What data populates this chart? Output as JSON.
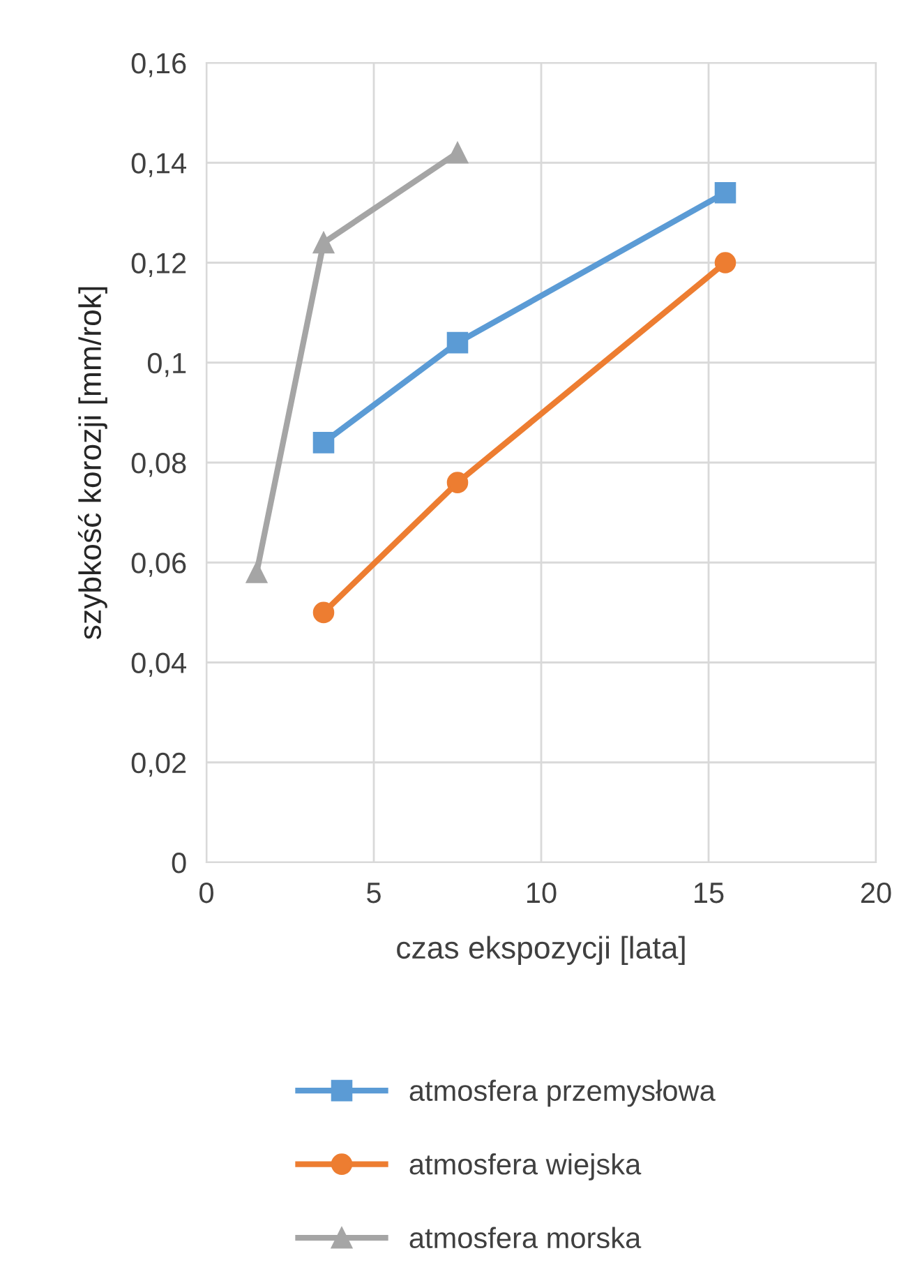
{
  "chart_data": {
    "type": "line",
    "xlabel": "czas ekspozycji [lata]",
    "ylabel": "szybkość korozji [mm/rok]",
    "series": [
      {
        "name": "atmosfera przemysłowa",
        "color": "#5b9bd5",
        "marker": "square",
        "x": [
          3.5,
          7.5,
          15.5
        ],
        "values": [
          0.084,
          0.104,
          0.134
        ]
      },
      {
        "name": "atmosfera wiejska",
        "color": "#ed7d31",
        "marker": "circle",
        "x": [
          3.5,
          7.5,
          15.5
        ],
        "values": [
          0.05,
          0.076,
          0.12
        ]
      },
      {
        "name": "atmosfera morska",
        "color": "#a5a5a5",
        "marker": "triangle",
        "x": [
          1.5,
          3.5,
          7.5
        ],
        "values": [
          0.058,
          0.124,
          0.142
        ]
      }
    ],
    "xlim": [
      0,
      20
    ],
    "xticks": [
      0,
      5,
      10,
      15,
      20
    ],
    "ylim": [
      0,
      0.16
    ],
    "yticks": [
      0,
      {
        "value": 0.02,
        "label": "0,02"
      },
      {
        "value": 0.04,
        "label": "0,04"
      },
      {
        "value": 0.06,
        "label": "0,06"
      },
      {
        "value": 0.08,
        "label": "0,08"
      },
      {
        "value": 0.1,
        "label": "0,1"
      },
      {
        "value": 0.12,
        "label": "0,12"
      },
      {
        "value": 0.14,
        "label": "0,14"
      },
      {
        "value": 0.16,
        "label": "0,16"
      }
    ],
    "grid": true,
    "legend": "bottom",
    "line_style": "solid"
  }
}
